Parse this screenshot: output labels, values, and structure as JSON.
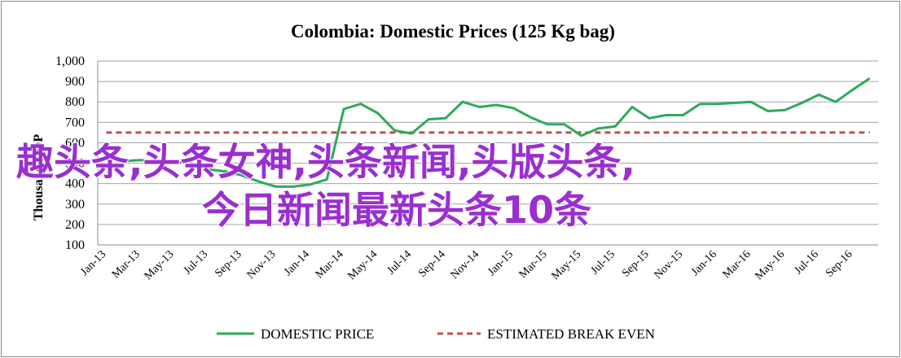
{
  "chart_data": {
    "type": "line",
    "title": "Colombia:  Domestic Prices (125 Kg bag)",
    "ylabel": "Thousand COP",
    "ylim": [
      100,
      1000
    ],
    "yticks": [
      "100",
      "200",
      "300",
      "400",
      "500",
      "600",
      "700",
      "800",
      "900",
      "1,000"
    ],
    "ytick_values": [
      100,
      200,
      300,
      400,
      500,
      600,
      700,
      800,
      900,
      1000
    ],
    "x_tick_labels": [
      "Jan-13",
      "Mar-13",
      "May-13",
      "Jul-13",
      "Sep-13",
      "Nov-13",
      "Jan-14",
      "Mar-14",
      "May-14",
      "Jul-14",
      "Sep-14",
      "Nov-14",
      "Jan-15",
      "Mar-15",
      "May-15",
      "Jul-15",
      "Sep-15",
      "Nov-15",
      "Jan-16",
      "Mar-16",
      "May-16",
      "Jul-16",
      "Sep-16"
    ],
    "x": [
      "Jan-13",
      "Feb-13",
      "Mar-13",
      "Apr-13",
      "May-13",
      "Jun-13",
      "Jul-13",
      "Aug-13",
      "Sep-13",
      "Oct-13",
      "Nov-13",
      "Dec-13",
      "Jan-14",
      "Feb-14",
      "Mar-14",
      "Apr-14",
      "May-14",
      "Jun-14",
      "Jul-14",
      "Aug-14",
      "Sep-14",
      "Oct-14",
      "Nov-14",
      "Dec-14",
      "Jan-15",
      "Feb-15",
      "Mar-15",
      "Apr-15",
      "May-15",
      "Jun-15",
      "Jul-15",
      "Aug-15",
      "Sep-15",
      "Oct-15",
      "Nov-15",
      "Dec-15",
      "Jan-16",
      "Feb-16",
      "Mar-16",
      "Apr-16",
      "May-16",
      "Jun-16",
      "Jul-16",
      "Aug-16",
      "Sep-16",
      "Oct-16"
    ],
    "series": [
      {
        "name": "DOMESTIC PRICE",
        "color": "#2eaa5a",
        "style": "solid",
        "values": [
          525,
          510,
          515,
          510,
          505,
          500,
          470,
          460,
          440,
          410,
          385,
          385,
          395,
          420,
          765,
          790,
          745,
          660,
          645,
          715,
          720,
          800,
          775,
          785,
          770,
          725,
          690,
          690,
          635,
          670,
          680,
          775,
          720,
          735,
          735,
          790,
          790,
          795,
          800,
          755,
          760,
          795,
          835,
          800,
          860,
          915
        ]
      },
      {
        "name": "ESTIMATED BREAK EVEN",
        "color": "#c0504d",
        "style": "dashed",
        "values": [
          650,
          650,
          650,
          650,
          650,
          650,
          650,
          650,
          650,
          650,
          650,
          650,
          650,
          650,
          650,
          650,
          650,
          650,
          650,
          650,
          650,
          650,
          650,
          650,
          650,
          650,
          650,
          650,
          650,
          650,
          650,
          650,
          650,
          650,
          650,
          650,
          650,
          650,
          650,
          650,
          650,
          650,
          650,
          650,
          650,
          650
        ]
      }
    ],
    "grid": true,
    "legend_position": "bottom"
  },
  "watermark": {
    "line1": "趣头条,头条女神,头条新闻,头版头条,",
    "line2": "今日新闻最新头条10条",
    "color": "#9a2fd0"
  }
}
